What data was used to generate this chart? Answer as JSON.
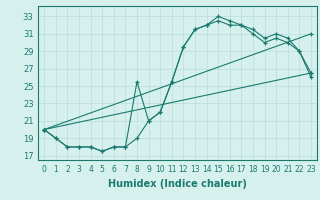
{
  "xlabel": "Humidex (Indice chaleur)",
  "line_color": "#1a7a6e",
  "bg_color": "#d6f0ee",
  "grid_color": "#b8ddd9",
  "xlim": [
    -0.5,
    23.5
  ],
  "ylim": [
    16.5,
    34.2
  ],
  "xticks": [
    0,
    1,
    2,
    3,
    4,
    5,
    6,
    7,
    8,
    9,
    10,
    11,
    12,
    13,
    14,
    15,
    16,
    17,
    18,
    19,
    20,
    21,
    22,
    23
  ],
  "yticks": [
    17,
    19,
    21,
    23,
    25,
    27,
    29,
    31,
    33
  ],
  "series": [
    {
      "x": [
        0,
        1,
        2,
        3,
        4,
        5,
        6,
        7,
        8,
        9,
        10,
        11,
        12,
        13,
        14,
        15,
        16,
        17,
        18,
        19,
        20,
        21,
        22,
        23
      ],
      "y": [
        20,
        19,
        18,
        18,
        18,
        17.5,
        18,
        18,
        19,
        21,
        22,
        25.5,
        29.5,
        31.5,
        32,
        33,
        32.5,
        32,
        31.5,
        30.5,
        31,
        30.5,
        29,
        26.5
      ]
    },
    {
      "x": [
        0,
        1,
        2,
        3,
        4,
        5,
        6,
        7,
        8,
        9,
        10,
        11,
        12,
        13,
        14,
        15,
        16,
        17,
        18,
        19,
        20,
        21,
        22,
        23
      ],
      "y": [
        20,
        19,
        18,
        18,
        18,
        17.5,
        18,
        18,
        25.5,
        21,
        22,
        25.5,
        29.5,
        31.5,
        32,
        32.5,
        32,
        32,
        31,
        30,
        30.5,
        30,
        29,
        26
      ]
    },
    {
      "x": [
        0,
        23
      ],
      "y": [
        20,
        31
      ]
    },
    {
      "x": [
        0,
        23
      ],
      "y": [
        20,
        26.5
      ]
    }
  ]
}
